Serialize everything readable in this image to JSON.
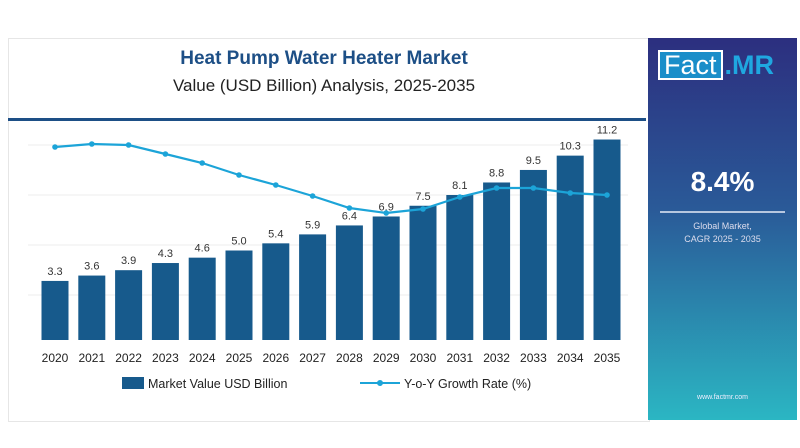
{
  "header": {
    "title": "Heat Pump Water Heater Market",
    "subtitle": "Value (USD Billion) Analysis, 2025-2035"
  },
  "panel": {
    "logo_left": "Fact",
    "logo_right": ".MR",
    "cagr": "8.4%",
    "label_line1": "Global Market,",
    "label_line2": "CAGR 2025 - 2035",
    "url": "www.factmr.com"
  },
  "colors": {
    "bar": "#175a8c",
    "line": "#1ca4d8",
    "title": "#1d4f86"
  },
  "chart_data": {
    "type": "bar+line",
    "title": "Heat Pump Water Heater Market",
    "subtitle": "Value (USD Billion) Analysis, 2025-2035",
    "categories": [
      "2020",
      "2021",
      "2022",
      "2023",
      "2024",
      "2025",
      "2026",
      "2027",
      "2028",
      "2029",
      "2030",
      "2031",
      "2032",
      "2033",
      "2034",
      "2035"
    ],
    "series": [
      {
        "name": "Market Value USD Billion",
        "type": "bar",
        "values": [
          3.3,
          3.6,
          3.9,
          4.3,
          4.6,
          5.0,
          5.4,
          5.9,
          6.4,
          6.9,
          7.5,
          8.1,
          8.8,
          9.5,
          10.3,
          11.2
        ],
        "labels": [
          "3.3",
          "3.6",
          "3.9",
          "4.3",
          "4.6",
          "5.0",
          "5.4",
          "5.9",
          "6.4",
          "6.9",
          "7.5",
          "8.1",
          "8.8",
          "9.5",
          "10.3",
          "11.2"
        ]
      },
      {
        "name": "Y-o-Y Growth Rate (%)",
        "type": "line",
        "values": [
          10.3,
          10.6,
          10.5,
          9.6,
          8.7,
          7.5,
          6.5,
          5.4,
          4.2,
          3.7,
          4.1,
          5.3,
          6.2,
          6.2,
          5.7,
          5.5
        ]
      }
    ],
    "ylim": [
      0,
      12
    ],
    "legend": "bottom",
    "grid": true
  }
}
